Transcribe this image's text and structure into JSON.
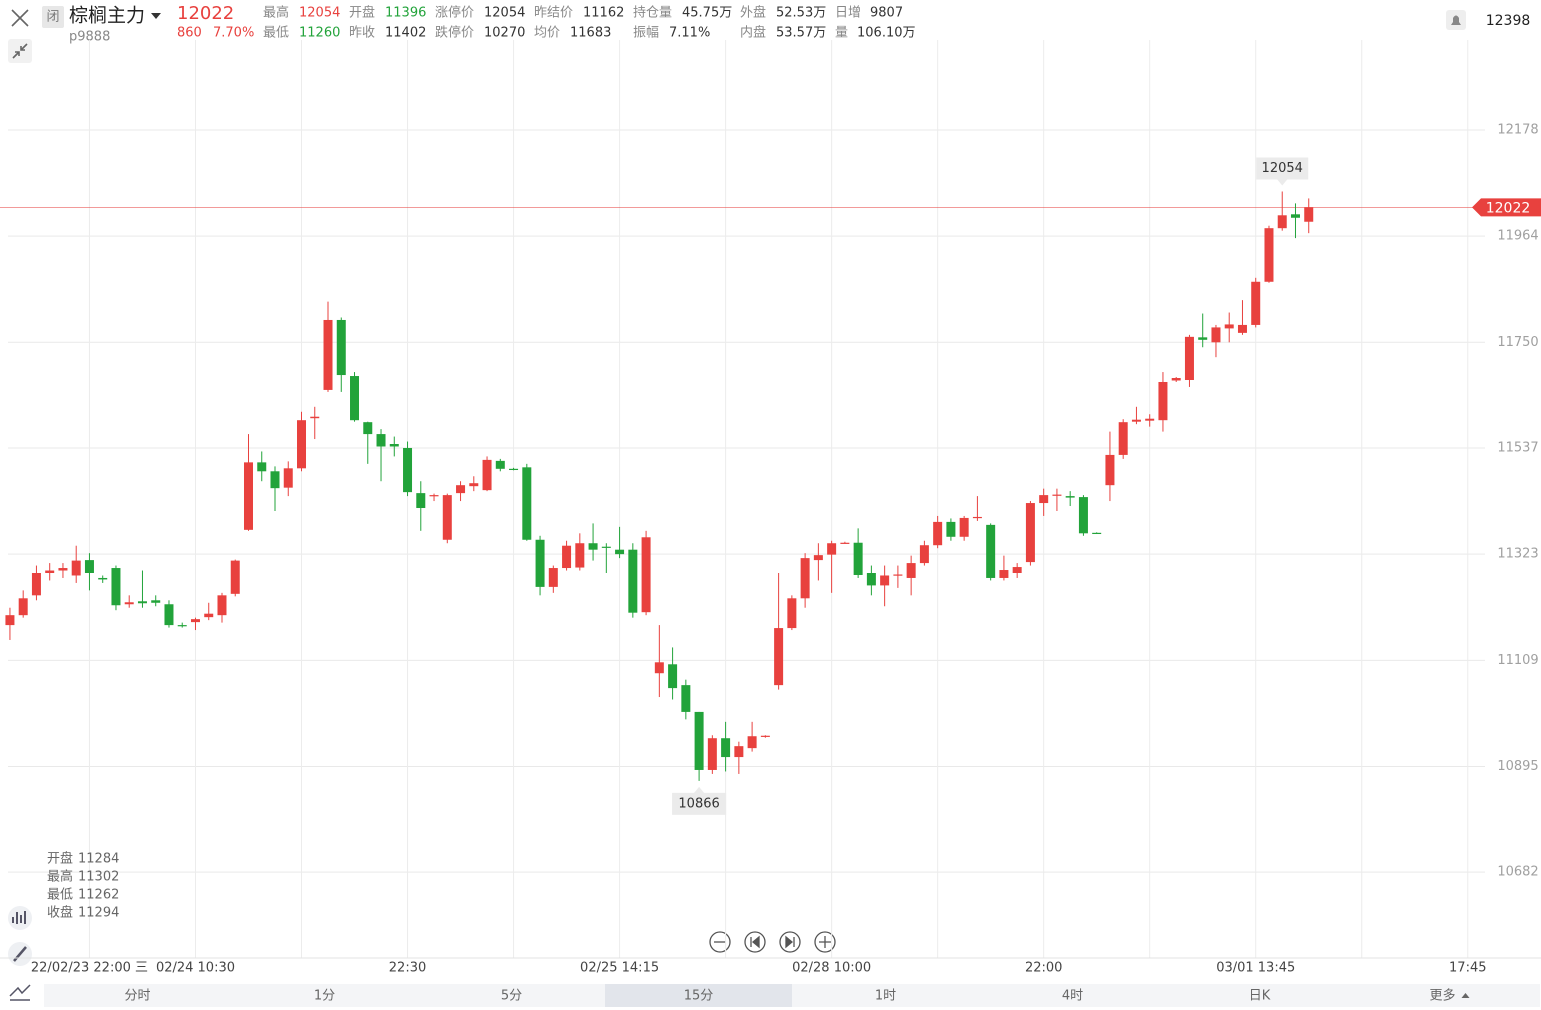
{
  "header": {
    "status": "闭",
    "name": "棕榈主力",
    "price": 12022,
    "code": "p9888",
    "change": 860,
    "change_pct": "7.70%",
    "alert_value": 12398
  },
  "stats": [
    [
      {
        "label": "最高",
        "value": 12054,
        "color": "#e8413e"
      },
      {
        "label": "开盘",
        "value": 11396,
        "color": "#22a33a"
      },
      {
        "label": "涨停价",
        "value": 12054
      },
      {
        "label": "昨结价",
        "value": 11162
      },
      {
        "label": "持仓量",
        "value": "45.75万"
      },
      {
        "label": "外盘",
        "value": "52.53万"
      },
      {
        "label": "日增",
        "value": 9807
      }
    ],
    [
      {
        "label": "最低",
        "value": 11260,
        "color": "#22a33a"
      },
      {
        "label": "昨收",
        "value": 11402
      },
      {
        "label": "跌停价",
        "value": 10270
      },
      {
        "label": "均价",
        "value": 11683
      },
      {
        "label": "振幅",
        "value": "7.11%"
      },
      {
        "label": "内盘",
        "value": "53.57万"
      },
      {
        "label": "量",
        "value": "106.10万"
      }
    ]
  ],
  "chart_data": {
    "type": "candlestick",
    "up_color": "#e8413e",
    "down_color": "#22a33a",
    "grid": true,
    "open": [
      11180,
      11200,
      11240,
      11285,
      11290,
      11280,
      11311,
      11275,
      11295,
      11222,
      11228,
      11230,
      11222,
      11180,
      11186,
      11196,
      11200,
      11243,
      11372,
      11508,
      11490,
      11457,
      11496,
      11597,
      11654,
      11795,
      11682,
      11589,
      11565,
      11545,
      11537,
      11446,
      11440,
      11352,
      11446,
      11460,
      11452,
      11511,
      11495,
      11498,
      11352,
      11257,
      11295,
      11296,
      11345,
      11338,
      11332,
      11332,
      11206,
      11083,
      11101,
      11059,
      11005,
      10888,
      10952,
      10914,
      10932,
      10955,
      11059,
      11174,
      11234,
      11311,
      11322,
      11346,
      11346,
      11285,
      11260,
      11280,
      11275,
      11305,
      11341,
      11388,
      11358,
      11396,
      11382,
      11275,
      11285,
      11307,
      11426,
      11442,
      11440,
      11438,
      11366,
      11462,
      11523,
      11590,
      11592,
      11593,
      11673,
      11674,
      11760,
      11750,
      11778,
      11769,
      11785,
      11872,
      11980,
      12008,
      11993
    ],
    "high": [
      11215,
      11250,
      11300,
      11305,
      11305,
      11340,
      11325,
      11280,
      11300,
      11240,
      11290,
      11240,
      11230,
      11185,
      11195,
      11225,
      11245,
      11312,
      11565,
      11530,
      11500,
      11510,
      11610,
      11620,
      11832,
      11800,
      11690,
      11590,
      11575,
      11560,
      11550,
      11470,
      11445,
      11445,
      11470,
      11480,
      11520,
      11515,
      11497,
      11505,
      11360,
      11300,
      11350,
      11365,
      11385,
      11345,
      11378,
      11345,
      11370,
      11180,
      11135,
      11070,
      11005,
      10958,
      10985,
      10945,
      10985,
      10958,
      11285,
      11240,
      11325,
      11345,
      11350,
      11348,
      11375,
      11300,
      11300,
      11300,
      11320,
      11350,
      11400,
      11395,
      11400,
      11440,
      11385,
      11320,
      11305,
      11430,
      11455,
      11455,
      11450,
      11442,
      11367,
      11570,
      11595,
      11620,
      11605,
      11690,
      11680,
      11765,
      11808,
      11785,
      11810,
      11835,
      11880,
      11985,
      12054,
      12030,
      12040
    ],
    "low": [
      11150,
      11195,
      11230,
      11270,
      11275,
      11265,
      11250,
      11265,
      11210,
      11215,
      11215,
      11218,
      11175,
      11175,
      11170,
      11190,
      11185,
      11238,
      11370,
      11470,
      11410,
      11440,
      11490,
      11555,
      11650,
      11650,
      11590,
      11505,
      11470,
      11520,
      11440,
      11370,
      11430,
      11345,
      11430,
      11450,
      11450,
      11490,
      11492,
      11350,
      11240,
      11245,
      11290,
      11290,
      11310,
      11285,
      11315,
      11195,
      11200,
      11035,
      11030,
      10990,
      10866,
      10880,
      10885,
      10880,
      10925,
      10953,
      11050,
      11170,
      11215,
      11270,
      11245,
      11344,
      11275,
      11240,
      11218,
      11255,
      11240,
      11300,
      11335,
      11350,
      11350,
      11390,
      11270,
      11270,
      11275,
      11300,
      11400,
      11410,
      11420,
      11360,
      11364,
      11430,
      11515,
      11585,
      11580,
      11570,
      11670,
      11660,
      11740,
      11720,
      11750,
      11765,
      11780,
      11870,
      11975,
      11960,
      11970
    ],
    "close": [
      11200,
      11234,
      11285,
      11290,
      11295,
      11310,
      11285,
      11272,
      11220,
      11226,
      11224,
      11225,
      11180,
      11178,
      11192,
      11203,
      11240,
      11310,
      11508,
      11490,
      11456,
      11496,
      11593,
      11600,
      11795,
      11684,
      11593,
      11565,
      11540,
      11540,
      11448,
      11416,
      11442,
      11442,
      11462,
      11466,
      11513,
      11495,
      11494,
      11352,
      11257,
      11295,
      11340,
      11345,
      11332,
      11336,
      11323,
      11205,
      11357,
      11105,
      11053,
      11005,
      10888,
      10952,
      10914,
      10936,
      10956,
      10957,
      11174,
      11234,
      11315,
      11321,
      11345,
      11346,
      11281,
      11260,
      11280,
      11282,
      11305,
      11341,
      11388,
      11358,
      11396,
      11398,
      11275,
      11291,
      11297,
      11426,
      11442,
      11443,
      11437,
      11365,
      11365,
      11523,
      11589,
      11594,
      11596,
      11670,
      11678,
      11761,
      11755,
      11780,
      11786,
      11785,
      11872,
      11980,
      12006,
      12001,
      12022
    ],
    "ylim": [
      10509,
      12319
    ],
    "yticks": [
      12178,
      11964,
      11750,
      11537,
      11323,
      11109,
      10895,
      10682
    ],
    "xlim": [
      -0.75,
      111.3
    ],
    "xticks": [
      {
        "value": 6,
        "label": "22/02/23 22:00 三"
      },
      {
        "value": 14,
        "label": "02/24 10:30"
      },
      {
        "value": 30,
        "label": "22:30"
      },
      {
        "value": 46,
        "label": "02/25 14:15"
      },
      {
        "value": 62,
        "label": "02/28 10:00"
      },
      {
        "value": 78,
        "label": "22:00"
      },
      {
        "value": 94,
        "label": "03/01 13:45"
      },
      {
        "value": 110,
        "label": "17:45"
      }
    ],
    "xgrid": [
      22,
      38,
      54,
      70,
      86,
      102
    ],
    "ohlc_panel": [
      {
        "label": "开盘",
        "value": 11284
      },
      {
        "label": "最高",
        "value": 11302
      },
      {
        "label": "最低",
        "value": 11262
      },
      {
        "label": "收盘",
        "value": 11294
      }
    ]
  },
  "tabs": {
    "items": [
      "分时",
      "1分",
      "5分",
      "15分",
      "1时",
      "4时",
      "日K",
      "更多"
    ],
    "active": 3
  }
}
